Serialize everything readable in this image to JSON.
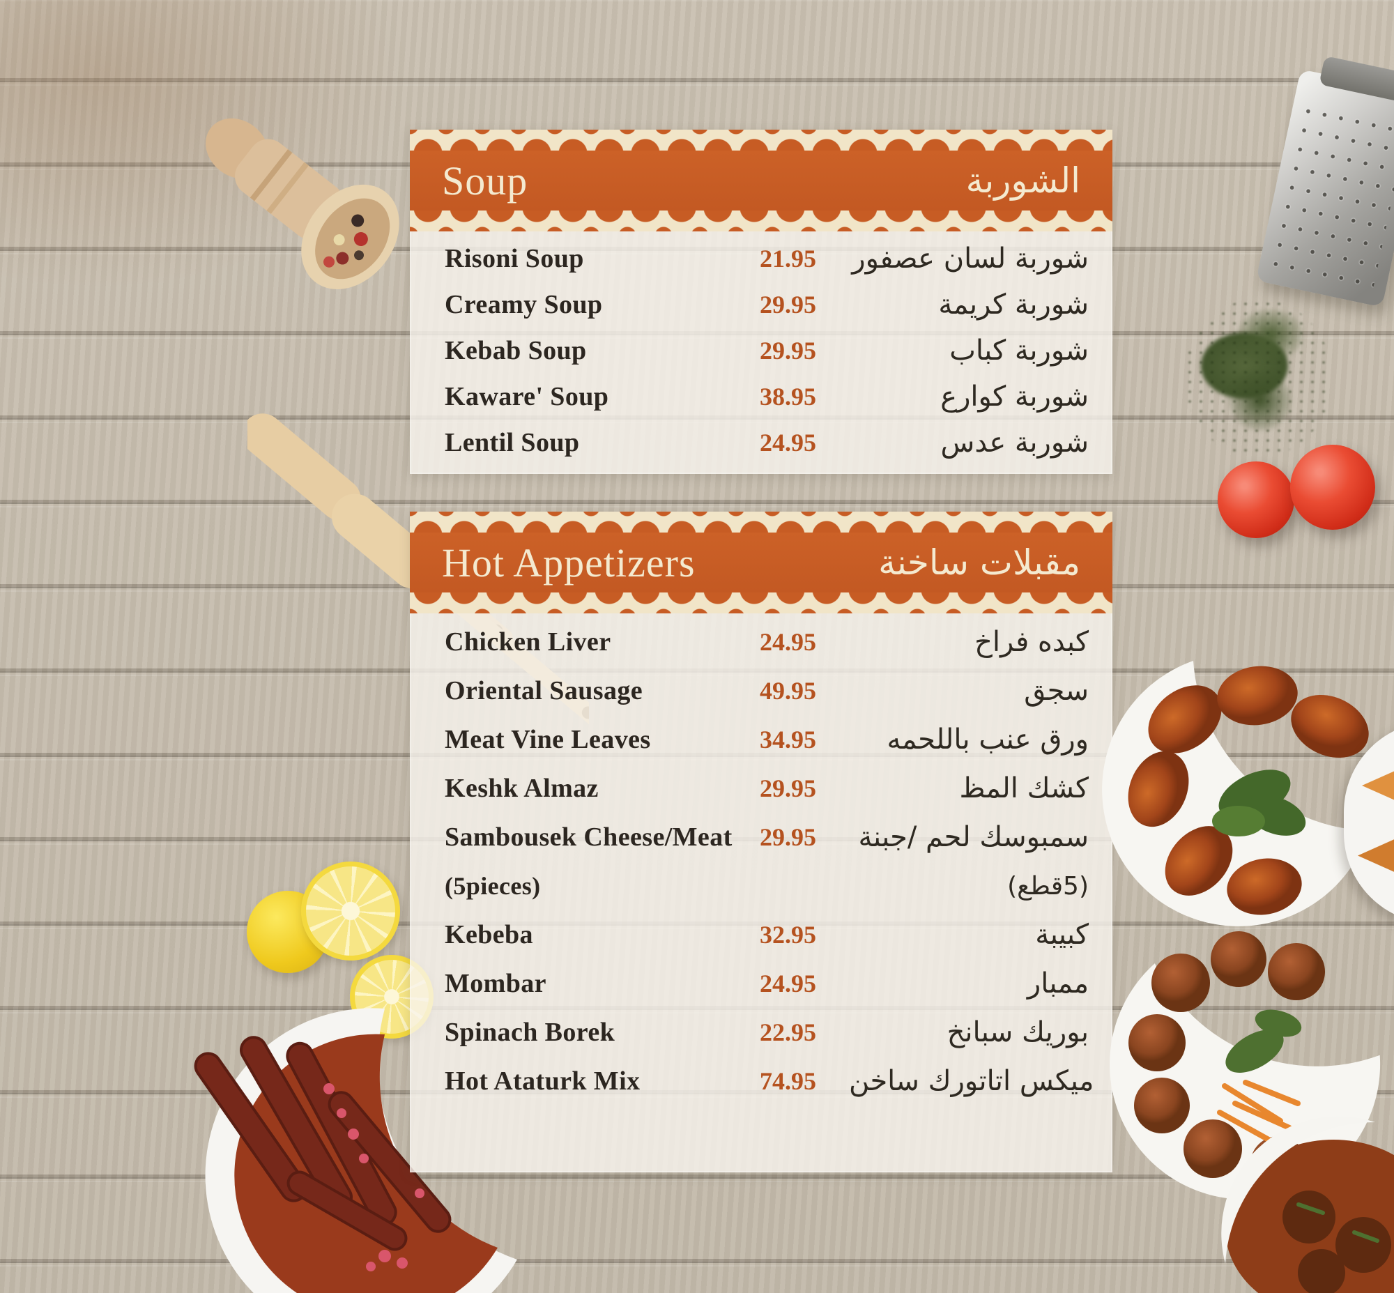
{
  "menu": {
    "sections": [
      {
        "id": "soup",
        "title_en": "Soup",
        "title_ar": "الشوربة",
        "items": [
          {
            "name_en": "Risoni Soup",
            "price": "21.95",
            "name_ar": "شوربة لسان عصفور"
          },
          {
            "name_en": "Creamy Soup",
            "price": "29.95",
            "name_ar": "شوربة كريمة"
          },
          {
            "name_en": "Kebab Soup",
            "price": "29.95",
            "name_ar": "شوربة كباب"
          },
          {
            "name_en": "Kaware' Soup",
            "price": "38.95",
            "name_ar": "شوربة كوارع"
          },
          {
            "name_en": "Lentil Soup",
            "price": "24.95",
            "name_ar": "شوربة عدس"
          }
        ]
      },
      {
        "id": "hot-appetizers",
        "title_en": "Hot Appetizers",
        "title_ar": "مقبلات ساخنة",
        "items": [
          {
            "name_en": "Chicken Liver",
            "price": "24.95",
            "name_ar": "كبده فراخ"
          },
          {
            "name_en": "Oriental Sausage",
            "price": "49.95",
            "name_ar": "سجق"
          },
          {
            "name_en": "Meat Vine Leaves",
            "price": "34.95",
            "name_ar": "ورق عنب باللحمه"
          },
          {
            "name_en": "Keshk Almaz",
            "price": "29.95",
            "name_ar": "كشك المظ"
          },
          {
            "name_en": "Sambousek Cheese/Meat",
            "price": "29.95",
            "name_ar": "سمبوسك لحم /جبنة",
            "note_en": "(5pieces)",
            "note_ar": "(5قطع)"
          },
          {
            "name_en": "Kebeba",
            "price": "32.95",
            "name_ar": "كبيبة"
          },
          {
            "name_en": "Mombar",
            "price": "24.95",
            "name_ar": "ممبار"
          },
          {
            "name_en": "Spinach Borek",
            "price": "22.95",
            "name_ar": "بوريك سبانخ"
          },
          {
            "name_en": "Hot Ataturk Mix",
            "price": "74.95",
            "name_ar": "ميكس اتاتورك ساخن"
          }
        ]
      }
    ],
    "colors": {
      "banner_orange": "#c75c24",
      "lace_cream": "#f1e5c8",
      "price_text": "#b5521f",
      "item_text": "#2c2620",
      "banner_title_text": "#f4ead0"
    },
    "decor": [
      "wooden-scoop-with-peppercorns",
      "metal-grater",
      "dried-herbs",
      "two-tomatoes",
      "two-wooden-spatulas",
      "lemon-slices",
      "sausage-dish",
      "kibbeh-plate",
      "sambousek-plate-edge",
      "meatball-plate",
      "meat-sauce-bowl"
    ]
  }
}
